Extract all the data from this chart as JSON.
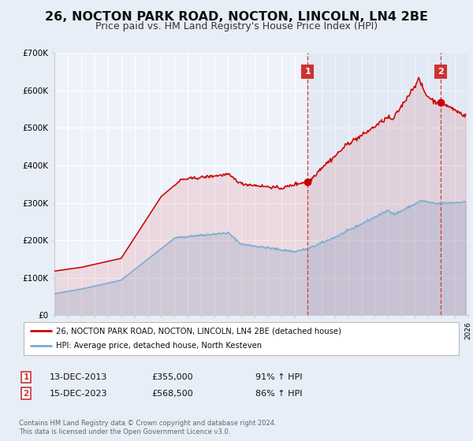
{
  "title": "26, NOCTON PARK ROAD, NOCTON, LINCOLN, LN4 2BE",
  "subtitle": "Price paid vs. HM Land Registry's House Price Index (HPI)",
  "title_fontsize": 11.5,
  "subtitle_fontsize": 9,
  "bg_color": "#e8eef8",
  "plot_bg_color": "#eef2fa",
  "ylim": [
    0,
    700000
  ],
  "xlim_start": 1995.0,
  "xlim_end": 2026.0,
  "yticks": [
    0,
    100000,
    200000,
    300000,
    400000,
    500000,
    600000,
    700000
  ],
  "ytick_labels": [
    "£0",
    "£100K",
    "£200K",
    "£300K",
    "£400K",
    "£500K",
    "£600K",
    "£700K"
  ],
  "red_line_color": "#cc0000",
  "blue_line_color": "#7aadd4",
  "marker1_x": 2013.96,
  "marker1_y": 355000,
  "marker2_x": 2023.96,
  "marker2_y": 568500,
  "vline1_x": 2013.96,
  "vline2_x": 2023.96,
  "annotation_box_color": "#cc3333",
  "legend_label_red": "26, NOCTON PARK ROAD, NOCTON, LINCOLN, LN4 2BE (detached house)",
  "legend_label_blue": "HPI: Average price, detached house, North Kesteven",
  "footnote1": "Contains HM Land Registry data © Crown copyright and database right 2024.",
  "footnote2": "This data is licensed under the Open Government Licence v3.0.",
  "table_row1_num": "1",
  "table_row1_date": "13-DEC-2013",
  "table_row1_price": "£355,000",
  "table_row1_hpi": "91% ↑ HPI",
  "table_row2_num": "2",
  "table_row2_date": "15-DEC-2023",
  "table_row2_price": "£568,500",
  "table_row2_hpi": "86% ↑ HPI"
}
